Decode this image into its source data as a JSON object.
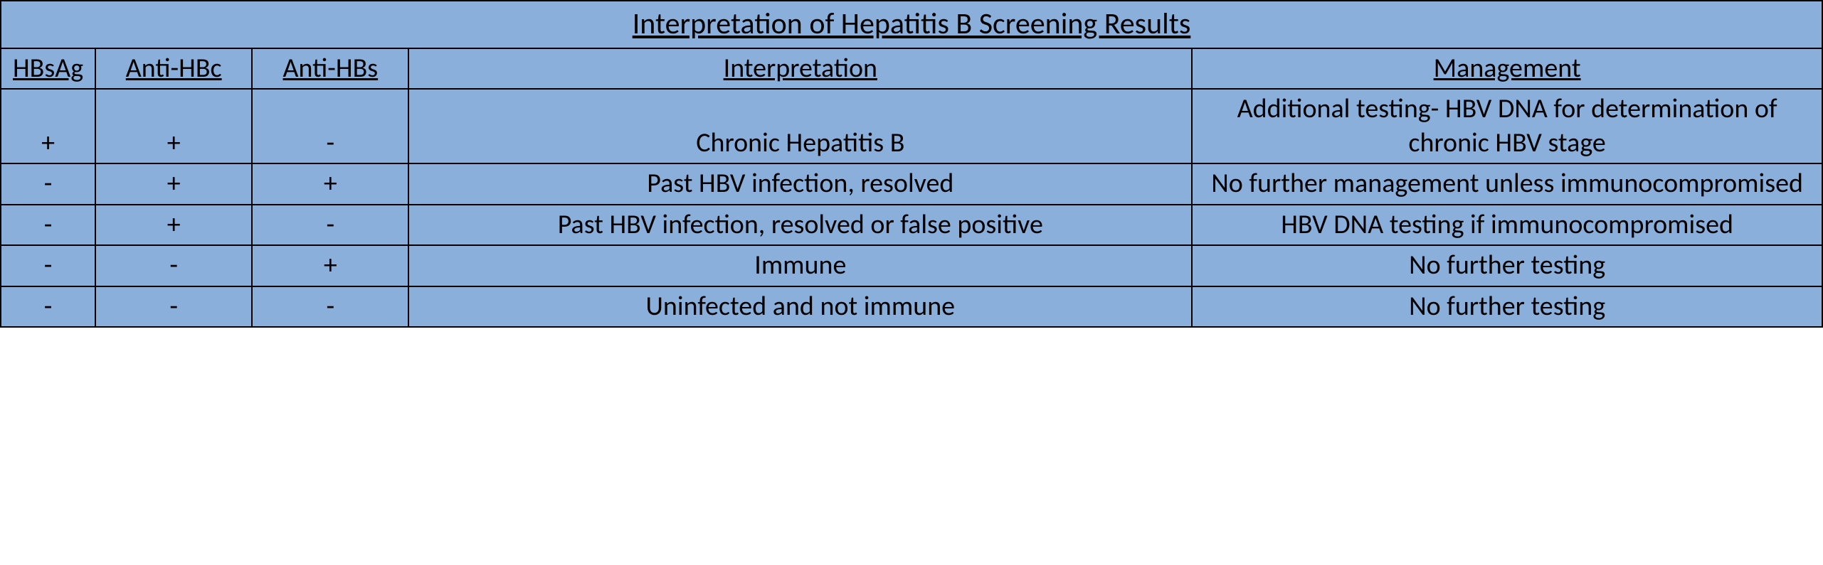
{
  "table": {
    "background_color": "#8BAFDB",
    "border_color": "#000000",
    "font_family": "Calibri, Arial, sans-serif",
    "title": "Interpretation of Hepatitis B Screening Results",
    "title_fontsize": 42,
    "header_fontsize": 38,
    "cell_fontsize": 38,
    "columns": [
      {
        "key": "hbsag",
        "label": "HBsAg",
        "width_pct": 5.2
      },
      {
        "key": "antihbc",
        "label": "Anti-HBc",
        "width_pct": 8.6
      },
      {
        "key": "antihbs",
        "label": "Anti-HBs",
        "width_pct": 8.6
      },
      {
        "key": "interpretation",
        "label": "Interpretation",
        "width_pct": 43.0
      },
      {
        "key": "management",
        "label": "Management",
        "width_pct": 34.6
      }
    ],
    "rows": [
      {
        "hbsag": "+",
        "antihbc": "+",
        "antihbs": "-",
        "interpretation": "Chronic Hepatitis B",
        "management": "Additional testing- HBV DNA for determination of chronic HBV stage"
      },
      {
        "hbsag": "-",
        "antihbc": "+",
        "antihbs": "+",
        "interpretation": "Past HBV infection, resolved",
        "management": "No further management unless immunocompromised"
      },
      {
        "hbsag": "-",
        "antihbc": "+",
        "antihbs": "-",
        "interpretation": "Past HBV infection, resolved or false positive",
        "management": "HBV DNA testing if immunocompromised"
      },
      {
        "hbsag": "-",
        "antihbc": "-",
        "antihbs": "+",
        "interpretation": "Immune",
        "management": "No further testing"
      },
      {
        "hbsag": "-",
        "antihbc": "-",
        "antihbs": "-",
        "interpretation": "Uninfected and not immune",
        "management": "No further testing"
      }
    ]
  }
}
